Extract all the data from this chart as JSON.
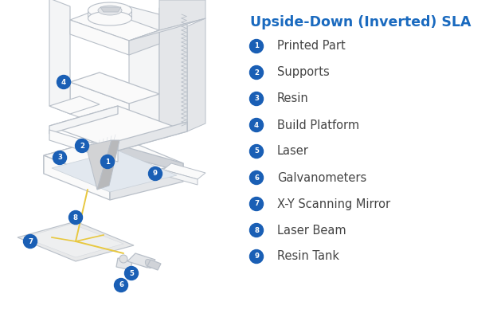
{
  "title": "Upside-Down (Inverted) SLA",
  "title_color": "#1a6abf",
  "title_fontsize": 12.5,
  "bg_color": "#ffffff",
  "legend_items": [
    {
      "num": "1",
      "label": "Printed Part"
    },
    {
      "num": "2",
      "label": "Supports"
    },
    {
      "num": "3",
      "label": "Resin"
    },
    {
      "num": "4",
      "label": "Build Platform"
    },
    {
      "num": "5",
      "label": "Laser"
    },
    {
      "num": "6",
      "label": "Galvanometers"
    },
    {
      "num": "7",
      "label": "X-Y Scanning Mirror"
    },
    {
      "num": "8",
      "label": "Laser Beam"
    },
    {
      "num": "9",
      "label": "Resin Tank"
    }
  ],
  "badge_color": "#1a5fb5",
  "badge_text_color": "#ffffff",
  "label_text_color": "#444444",
  "label_fontsize": 10.5,
  "lc": "#b8bfc8",
  "lc2": "#d0d5dc",
  "beam_color": "#e8c840",
  "fill_light": "#f4f5f6",
  "fill_mid": "#e4e6e9",
  "fill_dark": "#d0d3d8",
  "fill_white": "#fafafa",
  "fill_cone": "#c8cacc",
  "fill_cone_dark": "#aaaaac"
}
